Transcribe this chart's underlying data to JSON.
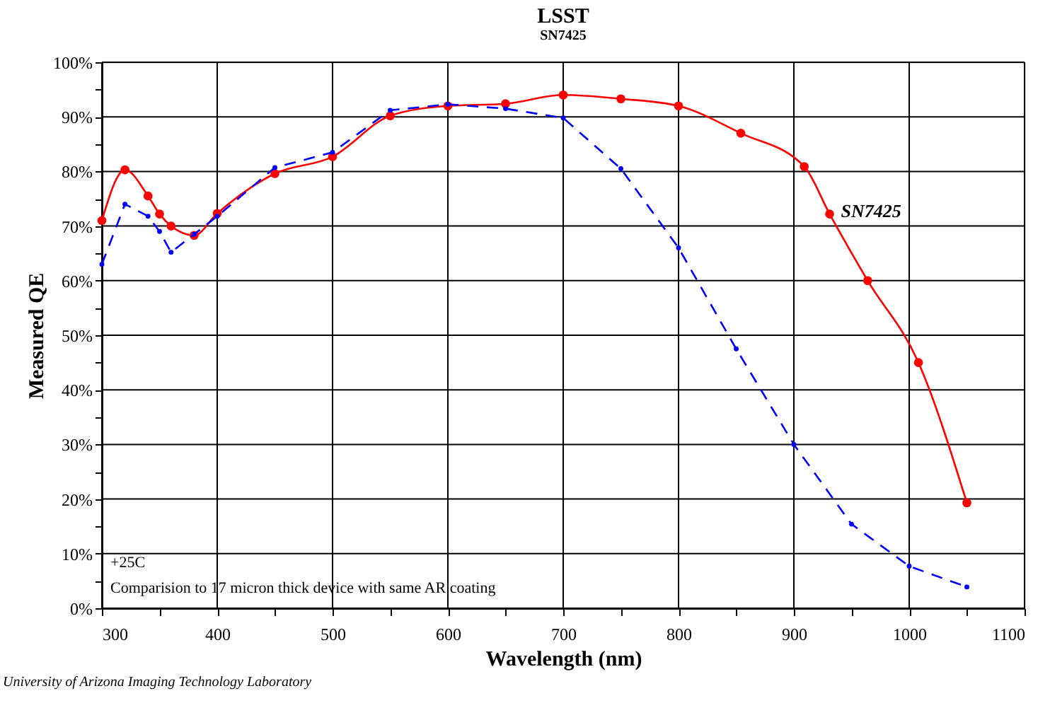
{
  "chart_data": {
    "type": "line",
    "title": "LSST",
    "subtitle": "SN7425",
    "xlabel": "Wavelength (nm)",
    "ylabel": "Measured QE",
    "series": [
      {
        "name": "SN7425",
        "color": "#ff0000",
        "line_style": "solid",
        "x": [
          300,
          320,
          340,
          350,
          360,
          380,
          400,
          450,
          500,
          550,
          600,
          650,
          700,
          750,
          800,
          854,
          909,
          931,
          964,
          1008,
          1050
        ],
        "values": [
          71,
          80.3,
          75.5,
          72.2,
          70,
          68.3,
          72.3,
          79.6,
          82.7,
          90.2,
          92,
          92.4,
          94,
          93.3,
          92,
          87,
          80.9,
          72.2,
          60,
          45,
          19.3
        ]
      },
      {
        "color": "#0000ff",
        "line_style": "dashed",
        "x": [
          300,
          320,
          340,
          350,
          360,
          380,
          400,
          450,
          500,
          550,
          600,
          650,
          700,
          750,
          800,
          850,
          900,
          950,
          1000,
          1050
        ],
        "values": [
          63,
          74,
          71.8,
          69,
          65.2,
          68.5,
          71.8,
          80.7,
          83.5,
          91.2,
          92.3,
          91.5,
          89.8,
          80.5,
          66,
          47.5,
          30,
          15.4,
          7.7,
          3.9
        ]
      }
    ],
    "marker": "circle",
    "grid": true,
    "xlim": [
      300,
      1100
    ],
    "xticks": [
      300,
      {
        "value": 350,
        "label": null
      },
      400,
      {
        "value": 450,
        "label": null
      },
      500,
      {
        "value": 550,
        "label": null
      },
      600,
      {
        "value": 650,
        "label": null
      },
      700,
      {
        "value": 750,
        "label": null
      },
      800,
      {
        "value": 850,
        "label": null
      },
      900,
      {
        "value": 950,
        "label": null
      },
      1000,
      {
        "value": 1050,
        "label": null
      },
      1100
    ],
    "ylim": [
      0,
      100
    ],
    "yticks": [
      {
        "value": 0,
        "label": "0%"
      },
      {
        "value": 5,
        "label": null
      },
      {
        "value": 10,
        "label": "10%"
      },
      {
        "value": 15,
        "label": null
      },
      {
        "value": 20,
        "label": "20%"
      },
      {
        "value": 25,
        "label": null
      },
      {
        "value": 30,
        "label": "30%"
      },
      {
        "value": 35,
        "label": null
      },
      {
        "value": 40,
        "label": "40%"
      },
      {
        "value": 45,
        "label": null
      },
      {
        "value": 50,
        "label": "50%"
      },
      {
        "value": 55,
        "label": null
      },
      {
        "value": 60,
        "label": "60%"
      },
      {
        "value": 65,
        "label": null
      },
      {
        "value": 70,
        "label": "70%"
      },
      {
        "value": 75,
        "label": null
      },
      {
        "value": 80,
        "label": "80%"
      },
      {
        "value": 85,
        "label": null
      },
      {
        "value": 90,
        "label": "90%"
      },
      {
        "value": 95,
        "label": null
      },
      {
        "value": 100,
        "label": "100%"
      }
    ],
    "annotations": [
      "+25C",
      "Comparision to 17 micron thick device with same AR coating",
      "University of Arizona Imaging Technology Laboratory"
    ]
  }
}
